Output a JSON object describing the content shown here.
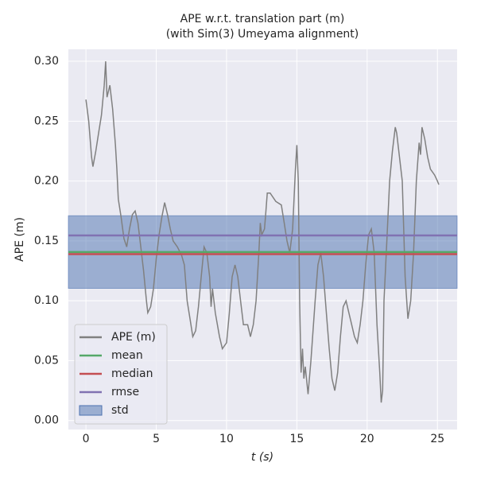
{
  "chart_data": {
    "type": "line",
    "title": "APE w.r.t. translation part (m)",
    "subtitle": "(with Sim(3) Umeyama alignment)",
    "xlabel": "t (s)",
    "ylabel": "APE (m)",
    "xlim": [
      -1.25,
      26.4
    ],
    "ylim": [
      -0.0075,
      0.31
    ],
    "xticks": [
      0,
      5,
      10,
      15,
      20,
      25
    ],
    "yticks": [
      {
        "value": 0,
        "label": "0.00"
      },
      {
        "value": 0.05,
        "label": "0.05"
      },
      {
        "value": 0.1,
        "label": "0.10"
      },
      {
        "value": 0.15,
        "label": "0.15"
      },
      {
        "value": 0.2,
        "label": "0.20"
      },
      {
        "value": 0.25,
        "label": "0.25"
      },
      {
        "value": 0.3,
        "label": "0.30"
      }
    ],
    "grid": true,
    "legend": "lower left",
    "series": [
      {
        "name": "APE (m)",
        "color": "#808080",
        "x": [
          0.0,
          0.2,
          0.4,
          0.5,
          0.7,
          0.9,
          1.1,
          1.3,
          1.4,
          1.5,
          1.7,
          1.9,
          2.1,
          2.2,
          2.3,
          2.5,
          2.7,
          2.9,
          3.1,
          3.3,
          3.5,
          3.7,
          3.9,
          4.1,
          4.3,
          4.4,
          4.6,
          4.8,
          5.0,
          5.2,
          5.4,
          5.6,
          5.8,
          6.0,
          6.2,
          6.5,
          6.8,
          7.0,
          7.2,
          7.4,
          7.6,
          7.8,
          8.0,
          8.2,
          8.4,
          8.6,
          8.8,
          8.9,
          9.0,
          9.2,
          9.5,
          9.7,
          10.0,
          10.2,
          10.4,
          10.6,
          10.8,
          11.0,
          11.2,
          11.5,
          11.7,
          11.9,
          12.1,
          12.3,
          12.4,
          12.5,
          12.7,
          12.8,
          12.9,
          13.1,
          13.5,
          13.9,
          14.1,
          14.3,
          14.5,
          14.7,
          14.9,
          15.0,
          15.1,
          15.2,
          15.3,
          15.4,
          15.5,
          15.6,
          15.8,
          16.0,
          16.3,
          16.5,
          16.7,
          16.9,
          17.1,
          17.3,
          17.5,
          17.7,
          17.9,
          18.1,
          18.3,
          18.5,
          18.7,
          18.9,
          19.1,
          19.3,
          19.5,
          19.7,
          19.9,
          20.1,
          20.3,
          20.5,
          20.7,
          20.9,
          21.0,
          21.1,
          21.2,
          21.4,
          21.6,
          21.8,
          22.0,
          22.1,
          22.3,
          22.5,
          22.7,
          22.9,
          23.1,
          23.3,
          23.5,
          23.7,
          23.8,
          23.9,
          24.1,
          24.3,
          24.5,
          24.8,
          25.0,
          25.1
        ],
        "values": [
          0.268,
          0.25,
          0.22,
          0.212,
          0.225,
          0.24,
          0.255,
          0.28,
          0.3,
          0.27,
          0.28,
          0.26,
          0.23,
          0.21,
          0.185,
          0.17,
          0.152,
          0.145,
          0.16,
          0.172,
          0.175,
          0.165,
          0.145,
          0.125,
          0.1,
          0.09,
          0.095,
          0.11,
          0.135,
          0.155,
          0.17,
          0.182,
          0.172,
          0.16,
          0.15,
          0.145,
          0.138,
          0.13,
          0.1,
          0.085,
          0.07,
          0.075,
          0.095,
          0.12,
          0.145,
          0.14,
          0.12,
          0.095,
          0.11,
          0.09,
          0.07,
          0.06,
          0.065,
          0.09,
          0.12,
          0.13,
          0.12,
          0.1,
          0.08,
          0.08,
          0.07,
          0.08,
          0.1,
          0.14,
          0.165,
          0.155,
          0.16,
          0.175,
          0.19,
          0.19,
          0.183,
          0.18,
          0.165,
          0.15,
          0.14,
          0.16,
          0.21,
          0.23,
          0.2,
          0.1,
          0.04,
          0.06,
          0.035,
          0.045,
          0.022,
          0.05,
          0.1,
          0.13,
          0.14,
          0.12,
          0.09,
          0.06,
          0.035,
          0.025,
          0.04,
          0.07,
          0.095,
          0.1,
          0.09,
          0.08,
          0.07,
          0.065,
          0.08,
          0.1,
          0.13,
          0.155,
          0.16,
          0.14,
          0.08,
          0.04,
          0.015,
          0.025,
          0.1,
          0.15,
          0.2,
          0.225,
          0.245,
          0.24,
          0.22,
          0.2,
          0.12,
          0.085,
          0.1,
          0.14,
          0.2,
          0.232,
          0.222,
          0.245,
          0.235,
          0.22,
          0.21,
          0.205,
          0.2,
          0.197
        ]
      }
    ],
    "hlines": [
      {
        "name": "mean",
        "color": "#55a868",
        "value": 0.1407
      },
      {
        "name": "median",
        "color": "#c44e52",
        "value": 0.139
      },
      {
        "name": "rmse",
        "color": "#8172b2",
        "value": 0.1546
      }
    ],
    "band": {
      "name": "std",
      "color": "#4c72b0",
      "value": 0.0303,
      "center": "mean"
    }
  }
}
